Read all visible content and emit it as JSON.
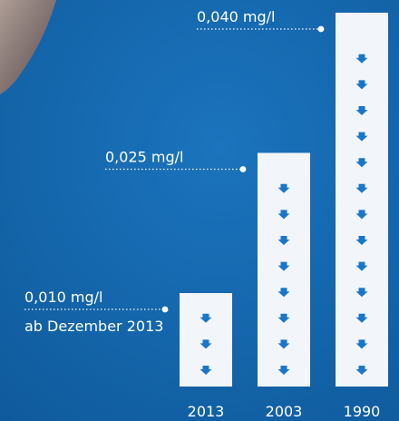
{
  "colors": {
    "background": "#0f5a9c",
    "background_light": "#1b74bd",
    "bar_fill": "#f2f5f9",
    "arrow": "#1976c9",
    "text": "#ffffff"
  },
  "chart_data": {
    "type": "bar",
    "categories": [
      "2013",
      "2003",
      "1990"
    ],
    "values": [
      0.01,
      0.025,
      0.04
    ],
    "unit": "mg/l",
    "value_labels": [
      "0,010 mg/l",
      "0,025 mg/l",
      "0,040 mg/l"
    ],
    "annotations": [
      "ab Dezember 2013"
    ],
    "xlabel": "",
    "ylabel": "",
    "ylim": [
      0,
      0.04
    ],
    "grid": false,
    "legend": "none",
    "bar_marker": "down-arrow"
  }
}
